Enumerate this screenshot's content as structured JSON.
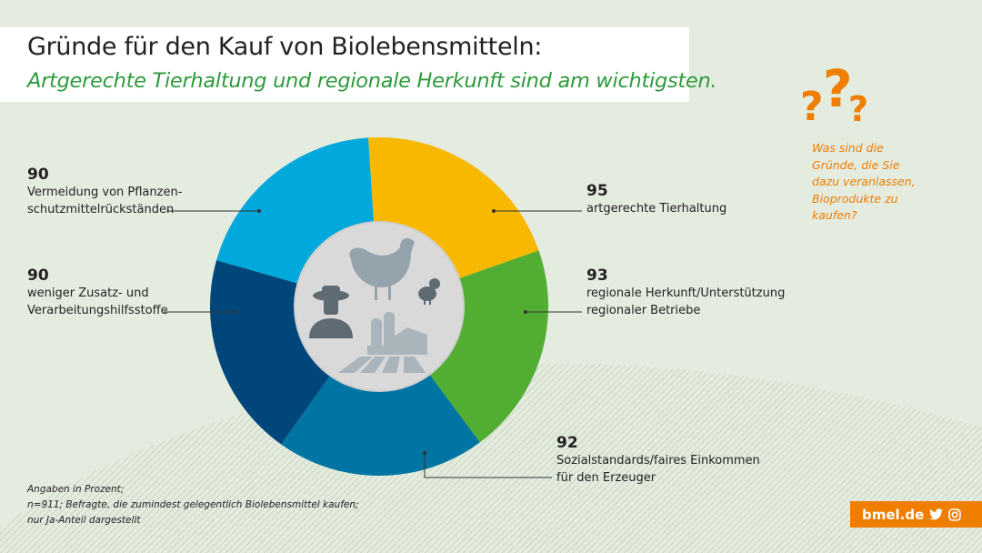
{
  "title": "Gründe für den Kauf von Biolebensmitteln:",
  "subtitle": "Artgerechte Tierhaltung und regionale Herkunft sind am wichtigsten.",
  "question": [
    "Was sind die",
    "Gründe, die Sie",
    "dazu veranlassen,",
    "Bioprodukte zu",
    "kaufen?"
  ],
  "footnote": [
    "Angaben in Prozent;",
    "n=911; Befragte, die zumindest gelegentlich Biolebensmittel kaufen;",
    "nur Ja-Anteil dargestellt"
  ],
  "brand": {
    "label": "bmel.de",
    "icons": [
      "twitter-icon",
      "instagram-icon"
    ],
    "color": "#ef7d00"
  },
  "chart_data": {
    "type": "pie",
    "variant": "donut",
    "unit": "%",
    "slices": [
      {
        "label": "artgerechte Tierhaltung",
        "value": 95,
        "color": "#f9b800"
      },
      {
        "label": "regionale Herkunft/Unterstützung regionaler Betriebe",
        "value": 93,
        "color": "#52ae32"
      },
      {
        "label": "Sozialstandards/faires Einkommen für den Erzeuger",
        "value": 92,
        "color": "#0075a3"
      },
      {
        "label": "weniger Zusatz- und Verarbeitungshilfsstoffe",
        "value": 90,
        "color": "#00467a"
      },
      {
        "label": "Vermeidung von Pflanzenschutzmittelrückständen",
        "value": 90,
        "color": "#00a8dc"
      }
    ],
    "label_lines": [
      [
        "artgerechte Tierhaltung"
      ],
      [
        "regionale Herkunft/Unterstützung",
        "regionaler Betriebe"
      ],
      [
        "Sozialstandards/faires Einkommen",
        "für den Erzeuger"
      ],
      [
        "weniger Zusatz- und",
        "Verarbeitungshilfsstoffe"
      ],
      [
        "Vermeidung von Pflanzen-",
        "schutzmittelrückständen"
      ]
    ],
    "center_icons": [
      "hen-icon",
      "chick-icon",
      "farmer-icon",
      "farm-icon"
    ]
  }
}
